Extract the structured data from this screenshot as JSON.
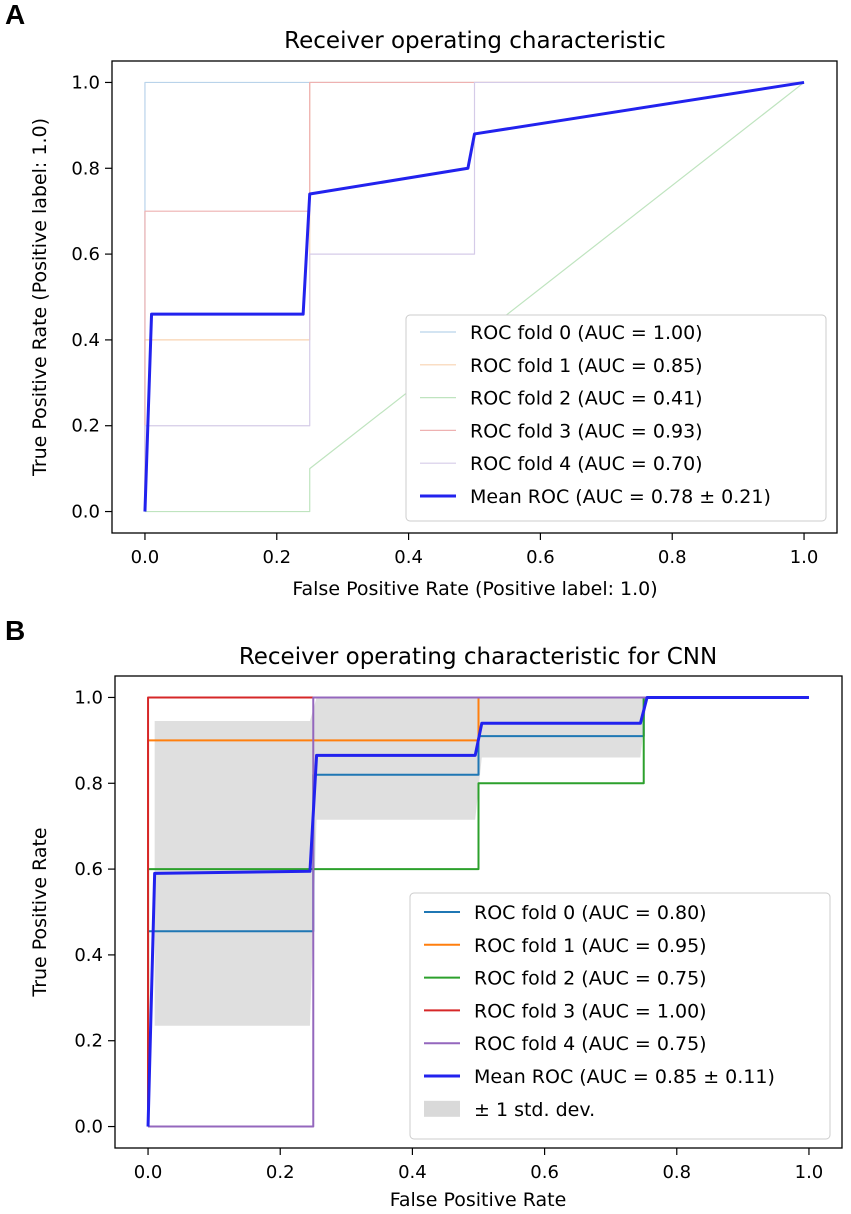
{
  "chart_data": [
    {
      "panel": "A",
      "type": "line",
      "title": "Receiver operating characteristic",
      "xlabel": "False Positive Rate (Positive label: 1.0)",
      "ylabel": "True Positive Rate (Positive label: 1.0)",
      "xlim": [
        -0.05,
        1.05
      ],
      "ylim": [
        -0.05,
        1.05
      ],
      "xticks": [
        "0.0",
        "0.2",
        "0.4",
        "0.6",
        "0.8",
        "1.0"
      ],
      "yticks": [
        "0.0",
        "0.2",
        "0.4",
        "0.6",
        "0.8",
        "1.0"
      ],
      "legend_position": "lower-right",
      "series": [
        {
          "name": "ROC fold 0 (AUC = 1.00)",
          "color": "#b9d3ea",
          "width": 1.2,
          "x": [
            0,
            0,
            0,
            1
          ],
          "y": [
            0,
            0.2,
            1.0,
            1.0
          ]
        },
        {
          "name": "ROC fold 1 (AUC = 0.85)",
          "color": "#f8d3b0",
          "width": 1.2,
          "x": [
            0,
            0,
            0.25,
            0.25,
            1
          ],
          "y": [
            0,
            0.4,
            0.4,
            1.0,
            1.0
          ]
        },
        {
          "name": "ROC fold 2 (AUC = 0.41)",
          "color": "#bfe4bf",
          "width": 1.2,
          "x": [
            0,
            0.25,
            0.25,
            1
          ],
          "y": [
            0,
            0,
            0.1,
            1.0
          ]
        },
        {
          "name": "ROC fold 3 (AUC = 0.93)",
          "color": "#eeb1b1",
          "width": 1.2,
          "x": [
            0,
            0,
            0.25,
            0.25,
            1
          ],
          "y": [
            0,
            0.7,
            0.7,
            1.0,
            1.0
          ]
        },
        {
          "name": "ROC fold 4 (AUC = 0.70)",
          "color": "#d5cbe8",
          "width": 1.2,
          "x": [
            0,
            0,
            0.25,
            0.25,
            0.5,
            0.5,
            1
          ],
          "y": [
            0,
            0.2,
            0.2,
            0.6,
            0.6,
            1.0,
            1.0
          ]
        },
        {
          "name": "Mean ROC (AUC = 0.78 ± 0.21)",
          "color": "#2222ee",
          "width": 3,
          "x": [
            0,
            0.01,
            0.24,
            0.25,
            0.49,
            0.5,
            1.0
          ],
          "y": [
            0,
            0.46,
            0.46,
            0.74,
            0.8,
            0.88,
            1.0
          ]
        }
      ]
    },
    {
      "panel": "B",
      "type": "line",
      "title": "Receiver operating characteristic for CNN",
      "xlabel": "False Positive Rate",
      "ylabel": "True Positive Rate",
      "xlim": [
        -0.05,
        1.05
      ],
      "ylim": [
        -0.05,
        1.05
      ],
      "xticks": [
        "0.0",
        "0.2",
        "0.4",
        "0.6",
        "0.8",
        "1.0"
      ],
      "yticks": [
        "0.0",
        "0.2",
        "0.4",
        "0.6",
        "0.8",
        "1.0"
      ],
      "legend_position": "lower-right",
      "band": {
        "name": "± 1 std. dev.",
        "color": "#d9d9d9",
        "x": [
          0.01,
          0.245,
          0.255,
          0.495,
          0.505,
          0.745,
          0.755,
          1.0
        ],
        "upper": [
          0.945,
          0.945,
          1.0,
          1.0,
          1.0,
          1.0,
          1.0,
          1.0
        ],
        "lower": [
          0.235,
          0.235,
          0.715,
          0.715,
          0.86,
          0.86,
          1.0,
          1.0
        ]
      },
      "series": [
        {
          "name": "ROC fold 0 (AUC = 0.80)",
          "color": "#1f77b4",
          "width": 2,
          "x": [
            0,
            0,
            0.25,
            0.25,
            0.5,
            0.5,
            0.75,
            0.75,
            1
          ],
          "y": [
            0,
            0.455,
            0.455,
            0.82,
            0.82,
            0.91,
            0.91,
            1.0,
            1.0
          ]
        },
        {
          "name": "ROC fold 1 (AUC = 0.95)",
          "color": "#ff7f0e",
          "width": 2,
          "x": [
            0,
            0,
            0.5,
            0.5,
            1
          ],
          "y": [
            0,
            0.9,
            0.9,
            1.0,
            1.0
          ]
        },
        {
          "name": "ROC fold 2 (AUC = 0.75)",
          "color": "#2ca02c",
          "width": 2,
          "x": [
            0,
            0,
            0.5,
            0.5,
            0.75,
            0.75,
            1
          ],
          "y": [
            0,
            0.6,
            0.6,
            0.8,
            0.8,
            1.0,
            1.0
          ]
        },
        {
          "name": "ROC fold 3 (AUC = 1.00)",
          "color": "#d62728",
          "width": 2,
          "x": [
            0,
            0,
            1
          ],
          "y": [
            0,
            1.0,
            1.0
          ]
        },
        {
          "name": "ROC fold 4 (AUC = 0.75)",
          "color": "#9467bd",
          "width": 2,
          "x": [
            0,
            0.25,
            0.25,
            1
          ],
          "y": [
            0,
            0,
            1.0,
            1.0
          ]
        },
        {
          "name": "Mean ROC (AUC = 0.85 ± 0.11)",
          "color": "#2222ee",
          "width": 3,
          "x": [
            0,
            0.01,
            0.245,
            0.255,
            0.495,
            0.505,
            0.745,
            0.755,
            1.0
          ],
          "y": [
            0,
            0.59,
            0.595,
            0.865,
            0.865,
            0.94,
            0.94,
            1.0,
            1.0
          ]
        }
      ]
    }
  ]
}
